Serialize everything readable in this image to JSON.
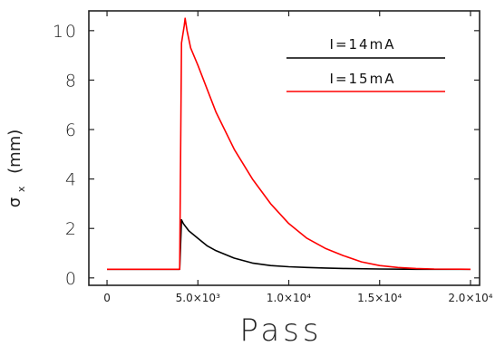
{
  "chart_data": {
    "type": "line",
    "title": "",
    "xlabel": "Pass",
    "ylabel": "σ",
    "ylabel_subscript": "x",
    "ylabel_unit": "(mm)",
    "xlim": [
      -1000,
      20500
    ],
    "ylim": [
      -0.3,
      10.8
    ],
    "x_ticks": [
      {
        "value": 0,
        "label": "0"
      },
      {
        "value": 5000,
        "label": "5.0×10³"
      },
      {
        "value": 10000,
        "label": "1.0×10⁴"
      },
      {
        "value": 15000,
        "label": "1.5×10⁴"
      },
      {
        "value": 20000,
        "label": "2.0×10⁴"
      }
    ],
    "y_ticks": [
      {
        "value": 0,
        "label": "0"
      },
      {
        "value": 2,
        "label": "2"
      },
      {
        "value": 4,
        "label": "4"
      },
      {
        "value": 6,
        "label": "6"
      },
      {
        "value": 8,
        "label": "8"
      },
      {
        "value": 10,
        "label": "10"
      }
    ],
    "grid": false,
    "legend_position": "top-right",
    "series": [
      {
        "name": "I=14mA",
        "color": "#000000",
        "x": [
          0,
          2000,
          4000,
          4100,
          4200,
          4500,
          5000,
          5500,
          6000,
          6500,
          7000,
          8000,
          9000,
          10000,
          11000,
          12000,
          13000,
          15000,
          17000,
          20000
        ],
        "y": [
          0.35,
          0.35,
          0.35,
          2.35,
          2.2,
          1.9,
          1.6,
          1.3,
          1.1,
          0.95,
          0.8,
          0.6,
          0.5,
          0.45,
          0.42,
          0.4,
          0.38,
          0.36,
          0.35,
          0.35
        ]
      },
      {
        "name": "I=15mA",
        "color": "#ff0000",
        "x": [
          0,
          2000,
          4000,
          4100,
          4250,
          4300,
          4400,
          4600,
          5000,
          6000,
          7000,
          8000,
          9000,
          10000,
          11000,
          12000,
          13000,
          14000,
          15000,
          16000,
          17000,
          18000,
          20000
        ],
        "y": [
          0.35,
          0.35,
          0.35,
          9.5,
          10.2,
          10.5,
          10.0,
          9.3,
          8.6,
          6.7,
          5.2,
          4.0,
          3.0,
          2.2,
          1.6,
          1.2,
          0.9,
          0.65,
          0.5,
          0.42,
          0.38,
          0.36,
          0.35
        ]
      }
    ]
  }
}
